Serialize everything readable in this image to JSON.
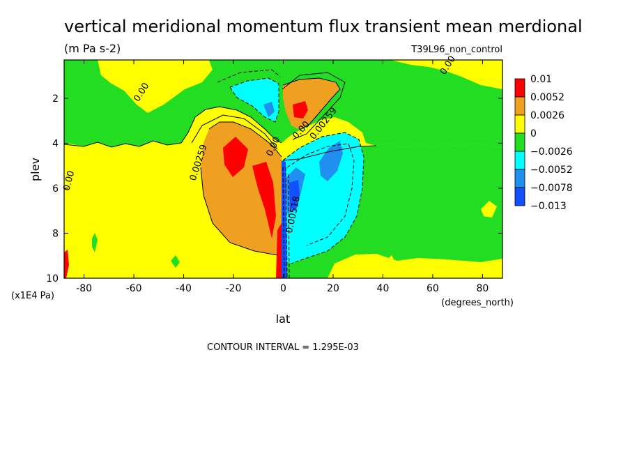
{
  "chart_data": {
    "type": "heatmap",
    "title": "vertical meridional momentum flux transient mean merdional",
    "units": "(m Pa s-2)",
    "dataset": "T39L96_non_control",
    "xlabel": "lat",
    "xunits": "(degrees_north)",
    "ylabel": "plev",
    "yunits": "(x1E4 Pa)",
    "xlim": [
      -88,
      88
    ],
    "ylim": [
      10,
      0.3
    ],
    "x_ticks": [
      -80,
      -60,
      -40,
      -20,
      0,
      20,
      40,
      60,
      80
    ],
    "y_ticks": [
      2,
      4,
      6,
      8,
      10
    ],
    "legend": {
      "placement": "right",
      "labels": [
        "0.01",
        "0.0052",
        "0.0026",
        "0",
        "−0.0026",
        "−0.0052",
        "−0.0078",
        "−0.013"
      ],
      "colors": [
        "#ff0000",
        "#f0a020",
        "#ffff00",
        "#22dd22",
        "#00ffff",
        "#2090f0",
        "#1050ff"
      ]
    },
    "contour_labels": [
      {
        "text": "0.00",
        "lat": -56,
        "plev": 1.8
      },
      {
        "text": "0.00",
        "lat": 67,
        "plev": 0.6
      },
      {
        "text": "0.00",
        "lat": -85,
        "plev": 5.7
      },
      {
        "text": "0.00259",
        "lat": -33,
        "plev": 4.9
      },
      {
        "text": "0.00",
        "lat": -3,
        "plev": 4.2
      },
      {
        "text": "0.00",
        "lat": 8,
        "plev": 3.5
      },
      {
        "text": "0.00259",
        "lat": 17,
        "plev": 3.2
      },
      {
        "text": "0.00518",
        "lat": 5,
        "plev": 7.2
      }
    ],
    "footer": "CONTOUR INTERVAL = 1.295E-03"
  }
}
